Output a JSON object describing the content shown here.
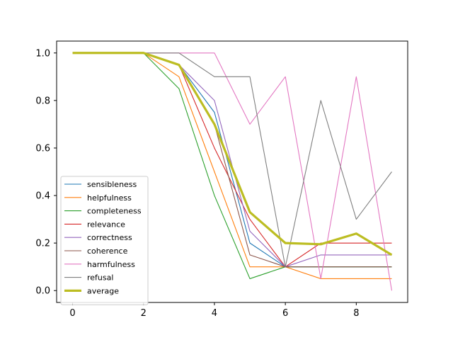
{
  "chart_data": {
    "type": "line",
    "x": [
      0,
      1,
      2,
      3,
      4,
      5,
      6,
      7,
      8,
      9
    ],
    "xlim": [
      -0.45,
      9.45
    ],
    "ylim": [
      -0.05,
      1.05
    ],
    "xticks": [
      0,
      2,
      4,
      6,
      8
    ],
    "yticks": [
      0.0,
      0.2,
      0.4,
      0.6,
      0.8,
      1.0
    ],
    "xtick_labels": [
      "0",
      "2",
      "4",
      "6",
      "8"
    ],
    "ytick_labels": [
      "0.0",
      "0.2",
      "0.4",
      "0.6",
      "0.8",
      "1.0"
    ],
    "grid": false,
    "legend_position": "lower-left",
    "series": [
      {
        "name": "sensibleness",
        "color": "#1f77b4",
        "values": [
          1.0,
          1.0,
          1.0,
          0.95,
          0.75,
          0.2,
          0.1,
          0.1,
          0.1,
          0.1
        ]
      },
      {
        "name": "helpfulness",
        "color": "#ff7f0e",
        "values": [
          1.0,
          1.0,
          1.0,
          0.9,
          0.5,
          0.1,
          0.1,
          0.05,
          0.05,
          0.05
        ]
      },
      {
        "name": "completeness",
        "color": "#2ca02c",
        "values": [
          1.0,
          1.0,
          1.0,
          0.85,
          0.4,
          0.05,
          0.1,
          0.1,
          0.1,
          0.1
        ]
      },
      {
        "name": "relevance",
        "color": "#d62728",
        "values": [
          1.0,
          1.0,
          1.0,
          0.95,
          0.6,
          0.3,
          0.1,
          0.2,
          0.2,
          0.2
        ]
      },
      {
        "name": "correctness",
        "color": "#9467bd",
        "values": [
          1.0,
          1.0,
          1.0,
          0.95,
          0.8,
          0.25,
          0.1,
          0.15,
          0.15,
          0.15
        ]
      },
      {
        "name": "coherence",
        "color": "#8c564b",
        "values": [
          1.0,
          1.0,
          1.0,
          0.95,
          0.7,
          0.15,
          0.1,
          0.1,
          0.1,
          0.1
        ]
      },
      {
        "name": "harmfulness",
        "color": "#e377c2",
        "values": [
          1.0,
          1.0,
          1.0,
          1.0,
          1.0,
          0.7,
          0.9,
          0.05,
          0.9,
          0.0
        ]
      },
      {
        "name": "refusal",
        "color": "#7f7f7f",
        "values": [
          1.0,
          1.0,
          1.0,
          1.0,
          0.9,
          0.9,
          0.1,
          0.8,
          0.3,
          0.5
        ]
      },
      {
        "name": "average",
        "color": "#bcbd22",
        "emphasis": true,
        "values": [
          1.0,
          1.0,
          1.0,
          0.95,
          0.7,
          0.33,
          0.2,
          0.195,
          0.24,
          0.15
        ]
      }
    ]
  }
}
